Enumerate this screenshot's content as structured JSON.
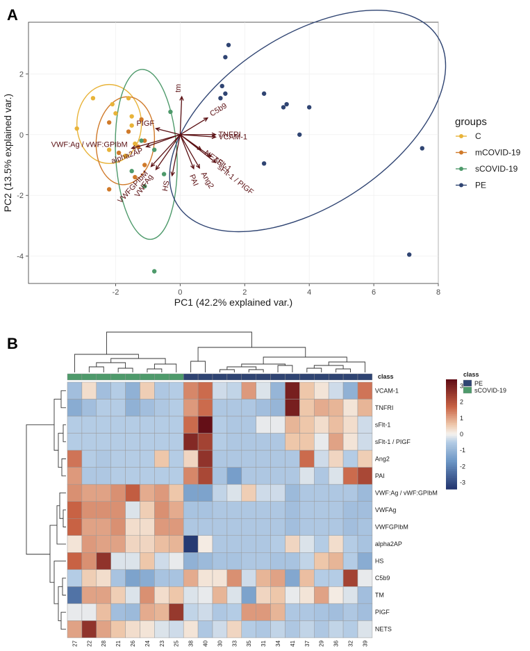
{
  "colors": {
    "C": "#e8b339",
    "mCOVID-19": "#d07a2a",
    "sCOVID-19": "#4e9a6b",
    "PE": "#2f4472",
    "arrow": "#5a0f12",
    "heat_low": "#22346e",
    "heat_mid": "#f5f2ee",
    "heat_high": "#5e0a14"
  },
  "chart_data": [
    {
      "panel": "A",
      "type": "scatter",
      "title": "",
      "xlabel": "PC1 (42.2% explained var.)",
      "ylabel": "PC2 (13.5% explained var.)",
      "xlim": [
        -4.7,
        8.0
      ],
      "ylim": [
        -4.9,
        3.7
      ],
      "xticks": [
        -2,
        0,
        2,
        4,
        6,
        8
      ],
      "yticks": [
        -4,
        -2,
        0,
        2
      ],
      "xtick_labels": [
        "-2",
        "0",
        "2",
        "4",
        "6",
        "8"
      ],
      "ytick_labels": [
        "-4",
        "-2",
        "0",
        "2"
      ],
      "grid": true,
      "legend_title": "groups",
      "legend_position": "right",
      "series": [
        {
          "name": "C",
          "points": [
            [
              -3.2,
              0.2
            ],
            [
              -2.7,
              1.2
            ],
            [
              -2.1,
              1.0
            ],
            [
              -2.0,
              0.7
            ],
            [
              -1.6,
              1.2
            ],
            [
              -1.5,
              0.6
            ],
            [
              -1.5,
              0.3
            ],
            [
              -1.4,
              -0.3
            ],
            [
              -2.2,
              -0.5
            ],
            [
              -1.7,
              -0.7
            ]
          ]
        },
        {
          "name": "mCOVID-19",
          "points": [
            [
              -2.2,
              0.4
            ],
            [
              -1.9,
              -0.6
            ],
            [
              -1.6,
              0.1
            ],
            [
              -1.3,
              -0.4
            ],
            [
              -1.2,
              0.5
            ],
            [
              -1.1,
              -1.0
            ],
            [
              -1.4,
              -1.4
            ],
            [
              -2.2,
              -1.8
            ],
            [
              -1.1,
              -0.2
            ]
          ]
        },
        {
          "name": "sCOVID-19",
          "points": [
            [
              -0.3,
              0.75
            ],
            [
              -1.2,
              -0.2
            ],
            [
              -0.8,
              -0.5
            ],
            [
              -1.5,
              -1.2
            ],
            [
              -1.1,
              -1.7
            ],
            [
              -0.5,
              -1.3
            ],
            [
              -0.8,
              -4.5
            ]
          ]
        },
        {
          "name": "PE",
          "points": [
            [
              1.5,
              2.95
            ],
            [
              1.4,
              2.55
            ],
            [
              1.3,
              1.6
            ],
            [
              1.4,
              1.35
            ],
            [
              1.25,
              1.2
            ],
            [
              2.6,
              1.35
            ],
            [
              3.3,
              1.0
            ],
            [
              3.2,
              0.9
            ],
            [
              4.0,
              0.9
            ],
            [
              3.7,
              0.0
            ],
            [
              2.6,
              -0.95
            ],
            [
              7.5,
              -0.45
            ],
            [
              7.1,
              -3.95
            ]
          ]
        }
      ],
      "ellipses": [
        {
          "group": "C",
          "center": [
            -2.2,
            0.35
          ],
          "semi_axes": [
            1.0,
            1.3
          ],
          "angle_deg": 0
        },
        {
          "group": "mCOVID-19",
          "center": [
            -1.7,
            -0.2
          ],
          "semi_axes": [
            0.9,
            1.45
          ],
          "angle_deg": 5
        },
        {
          "group": "sCOVID-19",
          "center": [
            -1.05,
            -0.65
          ],
          "semi_axes": [
            0.95,
            2.8
          ],
          "angle_deg": -3
        },
        {
          "group": "PE",
          "center": [
            3.95,
            0.45
          ],
          "semi_axes": [
            2.65,
            5.1
          ],
          "angle_deg": 57
        }
      ],
      "loadings": [
        {
          "label": "tm",
          "x": 0.05,
          "y": 1.25
        },
        {
          "label": "C5b9",
          "x": 0.85,
          "y": 0.55
        },
        {
          "label": "TNFRI",
          "x": 1.1,
          "y": 0.0
        },
        {
          "label": "VCAM-1",
          "x": 1.1,
          "y": -0.08
        },
        {
          "label": "NETS",
          "x": 0.65,
          "y": -0.5
        },
        {
          "label": "sFlt-1",
          "x": 0.95,
          "y": -0.72
        },
        {
          "label": "sFlt-1 / PIGF",
          "x": 1.1,
          "y": -0.92
        },
        {
          "label": "Ang2",
          "x": 0.6,
          "y": -1.1
        },
        {
          "label": "PAI",
          "x": 0.42,
          "y": -1.12
        },
        {
          "label": "HS",
          "x": -0.25,
          "y": -1.35
        },
        {
          "label": "PIGF",
          "x": -0.75,
          "y": 0.2
        },
        {
          "label": "VWF:Ag / vWF:GPIbM",
          "x": -1.5,
          "y": -0.45
        },
        {
          "label": "alpha2AP",
          "x": -1.05,
          "y": -0.4
        },
        {
          "label": "VWFGPIbM",
          "x": -0.9,
          "y": -1.05
        },
        {
          "label": "VWFAg",
          "x": -0.75,
          "y": -1.15
        }
      ]
    },
    {
      "panel": "B",
      "type": "heatmap",
      "title": "",
      "colorbar_title": "class",
      "colorbar_ticks": [
        3,
        2,
        1,
        0,
        -1,
        -2,
        -3
      ],
      "colorbar_range": [
        -3.4,
        3.4
      ],
      "class_legend": [
        "PE",
        "sCOVID-19"
      ],
      "annotation_label": "class",
      "columns": [
        "27",
        "22",
        "28",
        "21",
        "26",
        "24",
        "23",
        "25",
        "38",
        "40",
        "30",
        "33",
        "35",
        "31",
        "34",
        "41",
        "37",
        "29",
        "36",
        "32",
        "39"
      ],
      "column_class": [
        "sCOVID-19",
        "sCOVID-19",
        "sCOVID-19",
        "sCOVID-19",
        "sCOVID-19",
        "sCOVID-19",
        "sCOVID-19",
        "sCOVID-19",
        "PE",
        "PE",
        "PE",
        "PE",
        "PE",
        "PE",
        "PE",
        "PE",
        "PE",
        "PE",
        "PE",
        "PE",
        "PE"
      ],
      "rows": [
        "VCAM-1",
        "TNFRI",
        "sFlt-1",
        "sFlt-1 / PIGF",
        "Ang2",
        "PAI",
        "VWF:Ag / vWF:GPIbM",
        "VWFAg",
        "VWFGPIbM",
        "alpha2AP",
        "HS",
        "C5b9",
        "TM",
        "PIGF",
        "NETS"
      ],
      "values": [
        [
          -0.8,
          0.3,
          -0.8,
          -0.5,
          -1.1,
          0.5,
          -0.6,
          -0.5,
          1.3,
          1.6,
          -0.3,
          -0.4,
          1.1,
          -0.2,
          -1.0,
          3.0,
          0.6,
          0.2,
          -0.3,
          -1.1,
          1.5
        ],
        [
          -1.2,
          -0.8,
          -0.5,
          -0.5,
          -1.1,
          -0.8,
          -0.6,
          -0.5,
          1.1,
          1.6,
          -0.6,
          -0.6,
          -0.6,
          -0.8,
          -1.0,
          3.0,
          0.6,
          0.9,
          0.8,
          0.2,
          0.8
        ],
        [
          -0.5,
          -0.5,
          -0.5,
          -0.5,
          -0.5,
          -0.5,
          -0.5,
          -0.5,
          1.6,
          3.3,
          -0.5,
          -0.6,
          -0.6,
          -0.1,
          -0.1,
          0.8,
          0.6,
          0.3,
          0.7,
          0.3,
          -0.3
        ],
        [
          -0.5,
          -0.5,
          -0.5,
          -0.5,
          -0.5,
          -0.5,
          -0.5,
          -0.5,
          2.8,
          2.3,
          -0.5,
          -0.6,
          -0.6,
          -0.6,
          -0.6,
          0.6,
          0.6,
          -0.1,
          1.0,
          0.2,
          -0.3
        ],
        [
          1.5,
          -0.5,
          -0.6,
          -0.5,
          -0.5,
          -0.5,
          0.6,
          -0.5,
          0.4,
          2.6,
          -0.6,
          -0.6,
          -0.6,
          -0.6,
          -0.6,
          -0.6,
          1.6,
          -0.3,
          0.4,
          -0.5,
          0.5
        ],
        [
          1.1,
          -0.6,
          -0.6,
          -0.5,
          -0.5,
          -0.5,
          -0.5,
          -0.5,
          1.3,
          2.2,
          -0.7,
          -1.5,
          -0.6,
          -0.6,
          -0.6,
          -0.6,
          -0.2,
          -0.6,
          -0.2,
          1.6,
          2.2
        ],
        [
          1.2,
          1.0,
          1.0,
          1.2,
          1.8,
          0.9,
          1.1,
          0.6,
          -1.4,
          -1.4,
          -0.4,
          -0.2,
          0.5,
          -0.3,
          -0.3,
          -0.9,
          -0.6,
          -0.6,
          -0.6,
          -0.6,
          -0.9
        ],
        [
          1.7,
          1.2,
          1.2,
          1.2,
          -0.2,
          0.5,
          1.2,
          0.9,
          -0.7,
          -0.7,
          -0.6,
          -0.6,
          -0.6,
          -0.6,
          -0.6,
          -0.8,
          -0.6,
          -0.6,
          -0.6,
          -0.8,
          -0.8
        ],
        [
          1.7,
          1.0,
          1.0,
          1.2,
          0.3,
          0.3,
          1.1,
          1.1,
          -0.6,
          -0.6,
          -0.6,
          -0.6,
          -0.6,
          -0.6,
          -0.6,
          -0.8,
          -0.6,
          -0.6,
          -0.6,
          -0.8,
          -0.7
        ],
        [
          0.2,
          1.1,
          1.0,
          1.0,
          0.4,
          0.4,
          0.7,
          0.8,
          -3.3,
          0.1,
          -0.6,
          -0.6,
          -0.6,
          -0.6,
          -0.5,
          0.4,
          -0.2,
          -0.5,
          0.3,
          -0.5,
          -0.7
        ],
        [
          1.7,
          1.2,
          2.6,
          -0.2,
          -0.2,
          0.6,
          -0.3,
          -0.1,
          -1.1,
          -0.9,
          -0.7,
          -0.7,
          -0.6,
          -0.6,
          -0.7,
          -0.7,
          -0.4,
          0.6,
          0.8,
          -0.5,
          -1.2
        ],
        [
          -0.5,
          0.5,
          0.3,
          -0.7,
          -1.4,
          -1.2,
          -0.7,
          -0.7,
          0.9,
          0.2,
          0.2,
          1.2,
          -0.3,
          0.8,
          1.0,
          -1.3,
          0.7,
          -0.5,
          -0.5,
          2.3,
          -0.1
        ],
        [
          -2.3,
          1.0,
          1.0,
          0.5,
          -0.2,
          1.2,
          0.3,
          0.6,
          -0.2,
          -0.1,
          0.8,
          -0.2,
          -1.4,
          0.4,
          0.6,
          -0.1,
          0.2,
          1.0,
          0.1,
          -0.2,
          -0.8
        ],
        [
          -0.1,
          -0.1,
          0.7,
          -0.8,
          -0.9,
          0.9,
          0.8,
          2.5,
          -0.4,
          -0.3,
          -0.6,
          -0.5,
          1.1,
          1.1,
          0.8,
          -0.6,
          -0.6,
          -0.7,
          -0.8,
          -0.6,
          -0.8
        ],
        [
          1.0,
          2.6,
          1.0,
          0.6,
          0.3,
          0.2,
          -0.2,
          -0.3,
          0.2,
          -0.6,
          -0.3,
          0.4,
          -0.5,
          -0.6,
          -0.4,
          -0.6,
          -0.4,
          -0.6,
          -0.4,
          -0.5,
          -0.2
        ]
      ]
    }
  ]
}
